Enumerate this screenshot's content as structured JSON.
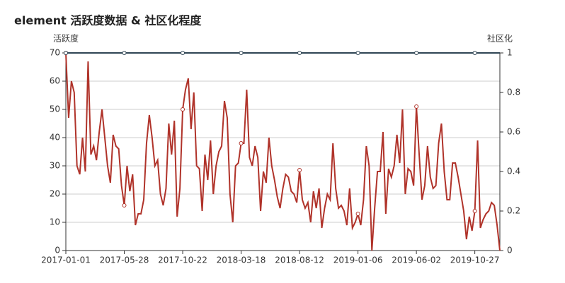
{
  "chart_data": {
    "type": "line",
    "title": "element 活跃度数据 & 社区化程度",
    "y_label": "活跃度",
    "y2_label": "社区化",
    "categories": [
      "2017-01-01",
      null,
      null,
      null,
      null,
      null,
      null,
      null,
      null,
      null,
      null,
      null,
      null,
      null,
      null,
      null,
      null,
      null,
      null,
      null,
      null,
      "2017-05-28",
      null,
      null,
      null,
      null,
      null,
      null,
      null,
      null,
      null,
      null,
      null,
      null,
      null,
      null,
      null,
      null,
      null,
      null,
      null,
      null,
      "2017-10-22",
      null,
      null,
      null,
      null,
      null,
      null,
      null,
      null,
      null,
      null,
      null,
      null,
      null,
      null,
      null,
      null,
      null,
      null,
      null,
      null,
      "2018-03-18",
      null,
      null,
      null,
      null,
      null,
      null,
      null,
      null,
      null,
      null,
      null,
      null,
      null,
      null,
      null,
      null,
      null,
      null,
      null,
      null,
      "2018-08-12",
      null,
      null,
      null,
      null,
      null,
      null,
      null,
      null,
      null,
      null,
      null,
      null,
      null,
      null,
      null,
      null,
      null,
      null,
      null,
      null,
      "2019-01-06",
      null,
      null,
      null,
      null,
      null,
      null,
      null,
      null,
      null,
      null,
      null,
      null,
      null,
      null,
      null,
      null,
      null,
      null,
      null,
      null,
      "2019-06-02",
      null,
      null,
      null,
      null,
      null,
      null,
      null,
      null,
      null,
      null,
      null,
      null,
      null,
      null,
      null,
      null,
      null,
      null,
      null,
      null,
      "2019-10-27",
      null,
      null,
      null,
      null,
      null,
      null,
      null,
      null,
      null
    ],
    "series": [
      {
        "name": "活跃度",
        "color": "#b0332a",
        "values": [
          70,
          47,
          60,
          56,
          30,
          27,
          40,
          28,
          67,
          34,
          37,
          32,
          42,
          50,
          40,
          30,
          24,
          41,
          37,
          36,
          23,
          16,
          30,
          21,
          27,
          9,
          13,
          13,
          18,
          38,
          48,
          40,
          30,
          32,
          20,
          16,
          22,
          45,
          34,
          46,
          12,
          22,
          50,
          57,
          61,
          43,
          56,
          30,
          29,
          14,
          34,
          25,
          39,
          20,
          30,
          35,
          37,
          53,
          47,
          20,
          10,
          30,
          31,
          38,
          38,
          57,
          33,
          30,
          37,
          33,
          14,
          28,
          24,
          40,
          30,
          25,
          19,
          15,
          22,
          27,
          26,
          21,
          20,
          17,
          28.5,
          18,
          15,
          17,
          10,
          21,
          15,
          22,
          8,
          15,
          20,
          18,
          38,
          22,
          15,
          16,
          14,
          9,
          22,
          8,
          10,
          13,
          9,
          18,
          37,
          30,
          0,
          15,
          28,
          28,
          42,
          13,
          29,
          26,
          30,
          41,
          31,
          50,
          20,
          29,
          28,
          23,
          51,
          34,
          18,
          23,
          37,
          26,
          22,
          23,
          38,
          45,
          28,
          18,
          18,
          31,
          31,
          26,
          20,
          14,
          4,
          12,
          7,
          14,
          39,
          8,
          11,
          13,
          14,
          17,
          16,
          9,
          0
        ]
      },
      {
        "name": "社区化",
        "color": "#2f4554",
        "axis": "y2",
        "values": [
          1,
          1,
          1,
          1,
          1,
          1,
          1,
          1,
          1,
          1,
          1,
          1,
          1,
          1,
          1,
          1,
          1,
          1,
          1,
          1,
          1,
          1,
          1,
          1,
          1,
          1,
          1,
          1,
          1,
          1,
          1,
          1,
          1,
          1,
          1,
          1,
          1,
          1,
          1,
          1,
          1,
          1,
          1,
          1,
          1,
          1,
          1,
          1,
          1,
          1,
          1,
          1,
          1,
          1,
          1,
          1,
          1,
          1,
          1,
          1,
          1,
          1,
          1,
          1,
          1,
          1,
          1,
          1,
          1,
          1,
          1,
          1,
          1,
          1,
          1,
          1,
          1,
          1,
          1,
          1,
          1,
          1,
          1,
          1,
          1,
          1,
          1,
          1,
          1,
          1,
          1,
          1,
          1,
          1,
          1,
          1,
          1,
          1,
          1,
          1,
          1,
          1,
          1,
          1,
          1,
          1,
          1,
          1,
          1,
          1,
          1,
          1,
          1,
          1,
          1,
          1,
          1,
          1,
          1,
          1,
          1,
          1,
          1,
          1,
          1,
          1,
          1,
          1,
          1,
          1,
          1,
          1,
          1,
          1,
          1,
          1,
          1,
          1,
          1,
          1,
          1,
          1,
          1,
          1,
          1,
          1,
          1,
          1,
          1,
          1,
          1,
          1,
          1,
          1,
          1,
          1,
          1
        ]
      }
    ],
    "ylim": [
      0,
      70
    ],
    "yticks": [
      0,
      10,
      20,
      30,
      40,
      50,
      60,
      70
    ],
    "y2lim": [
      0,
      1
    ],
    "y2ticks": [
      0,
      0.2,
      0.4,
      0.6,
      0.8,
      1
    ],
    "grid": true,
    "symbol_interval": 21
  }
}
